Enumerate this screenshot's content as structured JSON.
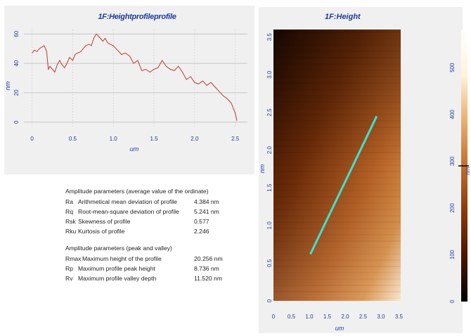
{
  "profile_chart": {
    "title": "1F:Heightprofileprofile",
    "xlabel": "um",
    "ylabel": "nm",
    "x_ticks": [
      "0",
      "0.5",
      "1.0",
      "1.5",
      "2.0",
      "2.5"
    ],
    "y_ticks": [
      "0",
      "20",
      "40",
      "60"
    ],
    "line_color": "#c0392b"
  },
  "chart_data": {
    "type": "line",
    "title": "1F:Heightprofileprofile",
    "xlabel": "um",
    "ylabel": "nm",
    "xlim": [
      -0.1,
      2.65
    ],
    "ylim": [
      -3,
      63
    ],
    "grid": true,
    "x": [
      0.0,
      0.03,
      0.06,
      0.09,
      0.12,
      0.15,
      0.18,
      0.2,
      0.22,
      0.25,
      0.28,
      0.31,
      0.34,
      0.37,
      0.4,
      0.43,
      0.46,
      0.5,
      0.53,
      0.56,
      0.6,
      0.63,
      0.66,
      0.7,
      0.73,
      0.76,
      0.79,
      0.81,
      0.84,
      0.87,
      0.9,
      0.93,
      0.96,
      1.0,
      1.05,
      1.1,
      1.15,
      1.2,
      1.25,
      1.3,
      1.35,
      1.4,
      1.45,
      1.5,
      1.55,
      1.6,
      1.65,
      1.7,
      1.75,
      1.8,
      1.85,
      1.9,
      1.95,
      2.0,
      2.05,
      2.1,
      2.15,
      2.2,
      2.25,
      2.3,
      2.35,
      2.4,
      2.45,
      2.5,
      2.52
    ],
    "y": [
      47,
      49,
      48,
      50,
      51,
      52,
      48,
      36,
      38,
      36,
      34,
      39,
      42,
      39,
      37,
      40,
      44,
      42,
      46,
      47,
      48,
      50,
      52,
      53,
      52,
      57,
      60,
      59,
      57,
      55,
      57,
      54,
      53,
      52,
      49,
      46,
      47,
      45,
      40,
      42,
      35,
      36,
      34,
      36,
      37,
      42,
      38,
      36,
      35,
      38,
      34,
      29,
      31,
      27,
      26,
      28,
      25,
      27,
      24,
      21,
      18,
      16,
      13,
      6,
      1
    ],
    "series_name": ""
  },
  "height_map": {
    "title": "1F:Height",
    "xlabel": "um",
    "ylabel": "nm",
    "x_ticks": [
      "0",
      "0.5",
      "1.0",
      "1.5",
      "2.0",
      "2.5",
      "3.0",
      "3.5"
    ],
    "y_ticks": [
      "0",
      "0.5",
      "1.0",
      "1.5",
      "2.0",
      "2.5",
      "3.0",
      "3.5"
    ],
    "line_color": "#40e0d0",
    "profile_line": {
      "x1": 1.03,
      "y1": 0.62,
      "x2": 2.88,
      "y2": 2.45
    }
  },
  "colorbar": {
    "ticks": [
      "0",
      "100",
      "200",
      "300",
      "400",
      "500"
    ],
    "unit": "nm",
    "range": [
      0,
      580
    ],
    "stops": [
      "#000000",
      "#4a1500",
      "#8a3a0a",
      "#c0702a",
      "#e8b070",
      "#fff2dc",
      "#ffffff"
    ]
  },
  "amplitude": {
    "header_avg": "Amplitude parameters (average value of the ordinate)",
    "rows_avg": [
      {
        "sym": "Ra",
        "desc": "Arithmetical mean deviation of profile",
        "val": "4.384 nm"
      },
      {
        "sym": "Rq",
        "desc": "Root-mean-square deviation of profile",
        "val": "5.241 nm"
      },
      {
        "sym": "Rsk",
        "desc": "Skewness of profile",
        "val": "0.577"
      },
      {
        "sym": "Rku",
        "desc": "Kurtosis of profile",
        "val": "2.246"
      }
    ],
    "header_pv": "Amplitude parameters (peak and valley)",
    "rows_pv": [
      {
        "sym": "Rmax",
        "desc": "Maximum height of the profile",
        "val": "20.256 nm"
      },
      {
        "sym": "Rp",
        "desc": "Maximum profile peak height",
        "val": "8.736 nm"
      },
      {
        "sym": "Rv",
        "desc": "Maximum profile valley depth",
        "val": "11.520 nm"
      }
    ]
  }
}
